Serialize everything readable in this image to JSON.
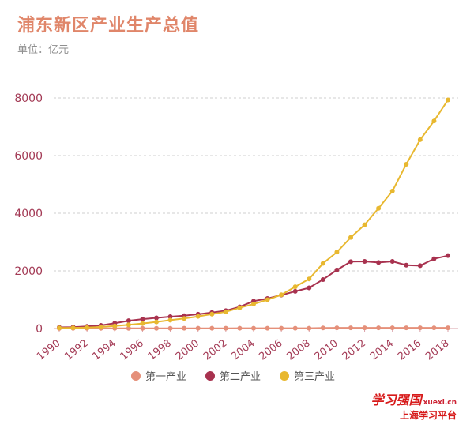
{
  "chart_data": {
    "type": "line",
    "title": "浦东新区产业生产总值",
    "subtitle": "单位：亿元",
    "x": [
      1990,
      1991,
      1992,
      1993,
      1994,
      1995,
      1996,
      1997,
      1998,
      1999,
      2000,
      2001,
      2002,
      2003,
      2004,
      2005,
      2006,
      2007,
      2008,
      2009,
      2010,
      2011,
      2012,
      2013,
      2014,
      2015,
      2016,
      2017,
      2018
    ],
    "x_ticks": [
      "1990",
      "1992",
      "1994",
      "1996",
      "1998",
      "2000",
      "2002",
      "2004",
      "2006",
      "2008",
      "2010",
      "2012",
      "2014",
      "2016",
      "2018"
    ],
    "y_ticks": [
      "0",
      "2000",
      "4000",
      "6000",
      "8000"
    ],
    "ylim": [
      0,
      8200
    ],
    "grid": true,
    "legend_position": "bottom",
    "series": [
      {
        "name": "第一产业",
        "color": "#e5907a",
        "values": [
          5,
          6,
          6,
          7,
          7,
          8,
          8,
          8,
          8,
          9,
          9,
          9,
          9,
          10,
          10,
          10,
          10,
          11,
          11,
          20,
          25,
          25,
          25,
          25,
          25,
          25,
          25,
          25,
          25
        ]
      },
      {
        "name": "第二产业",
        "color": "#a8324f",
        "values": [
          40,
          50,
          75,
          110,
          185,
          270,
          325,
          370,
          410,
          445,
          495,
          555,
          620,
          750,
          950,
          1040,
          1160,
          1290,
          1410,
          1700,
          2030,
          2320,
          2330,
          2290,
          2330,
          2200,
          2180,
          2420,
          2530
        ]
      },
      {
        "name": "第三产业",
        "color": "#e8b830",
        "values": [
          20,
          25,
          35,
          55,
          90,
          130,
          175,
          230,
          290,
          350,
          420,
          500,
          580,
          720,
          850,
          1000,
          1170,
          1450,
          1720,
          2260,
          2650,
          3160,
          3600,
          4170,
          4770,
          5700,
          6550,
          7200,
          7930
        ]
      }
    ]
  },
  "watermark": {
    "line1": "学习强国",
    "line1_small": "xuexi.cn",
    "line2": "上海学习平台"
  }
}
